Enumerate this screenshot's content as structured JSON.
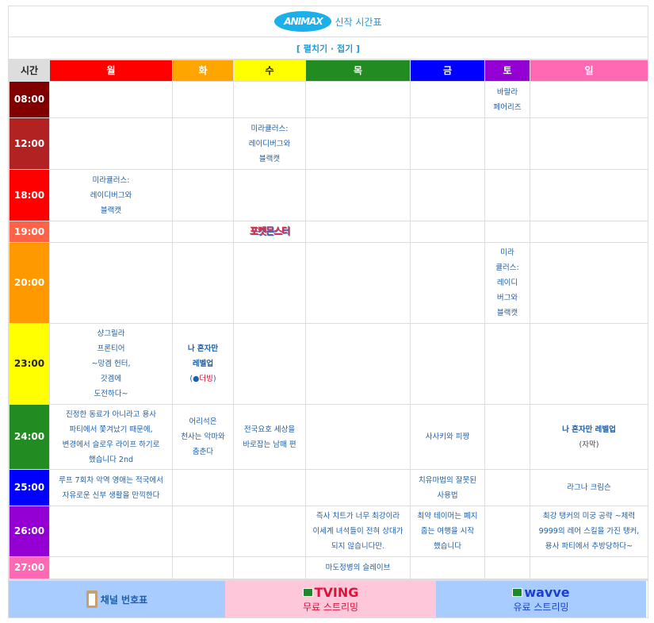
{
  "header": {
    "logo": "ANIMAX",
    "title": "신작 시간표",
    "toggle": "[ 펼치기 · 접기 ]"
  },
  "columns": [
    {
      "label": "시간",
      "color": "#dddddd",
      "text": "#222222"
    },
    {
      "label": "월",
      "color": "#ff0000",
      "text": "#ffffff"
    },
    {
      "label": "화",
      "color": "#ffa500",
      "text": "#ffffff"
    },
    {
      "label": "수",
      "color": "#ffff00",
      "text": "#222222"
    },
    {
      "label": "목",
      "color": "#228b22",
      "text": "#ffffff"
    },
    {
      "label": "금",
      "color": "#0000ff",
      "text": "#ffffff"
    },
    {
      "label": "토",
      "color": "#9400d3",
      "text": "#ffffff"
    },
    {
      "label": "일",
      "color": "#ff69b4",
      "text": "#ffffff"
    }
  ],
  "rows": [
    {
      "time": "08:00",
      "color": "#800000",
      "text": "#ffffff",
      "cells": [
        "",
        "",
        "",
        "",
        "",
        "바랄라\n페어리즈",
        ""
      ]
    },
    {
      "time": "12:00",
      "color": "#b22222",
      "text": "#ffffff",
      "cells": [
        "",
        "",
        "미라큘러스:\n레이디버그와\n블랙캣",
        "",
        "",
        "",
        ""
      ]
    },
    {
      "time": "18:00",
      "color": "#ff0000",
      "text": "#ffffff",
      "cells": [
        "미라큘러스:\n레이디버그와\n블랙캣",
        "",
        "",
        "",
        "",
        "",
        ""
      ]
    },
    {
      "time": "19:00",
      "color": "#ff6347",
      "text": "#ffffff",
      "cells": [
        "",
        "",
        {
          "logo": "포켓몬스터"
        },
        "",
        "",
        "",
        ""
      ]
    },
    {
      "time": "20:00",
      "color": "#ff9900",
      "text": "#ffffff",
      "cells": [
        "",
        "",
        "",
        "",
        "",
        "미라\n큘러스:\n레이디\n버그와\n블랙캣",
        ""
      ]
    },
    {
      "time": "23:00",
      "color": "#ffff00",
      "text": "#222222",
      "cells": [
        "샹그릴라\n프론티어\n~망겜 헌터,\n갓겜에\n도전하다~",
        {
          "bold": "나 혼자만\n레벨업",
          "dub": "더빙"
        },
        "",
        "",
        "",
        "",
        ""
      ]
    },
    {
      "time": "24:00",
      "color": "#228b22",
      "text": "#ffffff",
      "cells": [
        "진정한 동료가 아니라고 용사\n파티에서 쫓겨났기 때문에,\n변경에서 슬로우 라이프 하기로\n했습니다 2nd",
        "어리석은\n천사는 악마와\n춤춘다",
        "전국요호 세상을\n바로잡는 남매 편",
        "",
        "사사키와 피짱",
        "",
        {
          "bold": "나 혼자만 레벨업",
          "sub": "(자막)"
        }
      ]
    },
    {
      "time": "25:00",
      "color": "#0000ff",
      "text": "#ffffff",
      "cells": [
        "루프 7회차 악역 영애는 적국에서\n자유로운 신부 생활을 만끽한다",
        "",
        "",
        "",
        "치유마법의 잘못된\n사용법",
        "",
        "라그나 크림슨"
      ]
    },
    {
      "time": "26:00",
      "color": "#9400d3",
      "text": "#ffffff",
      "cells": [
        "",
        "",
        "",
        "즉사 치트가 너무 최강이라\n이세계 녀석들이 전혀 상대가\n되지 않습니다만.",
        "최약 테이머는 폐지\n줍는 여행을 시작\n했습니다",
        "",
        "최강 탱커의 미궁 공략 ~체력\n9999의 레어 스킬을 가진 탱커,\n용사 파티에서 추방당하다~"
      ]
    },
    {
      "time": "27:00",
      "color": "#ff69b4",
      "text": "#ffffff",
      "cells": [
        "",
        "",
        "",
        "마도정병의 슬레이브",
        "",
        "",
        ""
      ]
    }
  ],
  "footer": {
    "channel": "채널 번호표",
    "tving": {
      "brand": "TVING",
      "label": "무료 스트리밍"
    },
    "wavve": {
      "brand": "wavve",
      "label": "유료 스트리밍"
    }
  }
}
